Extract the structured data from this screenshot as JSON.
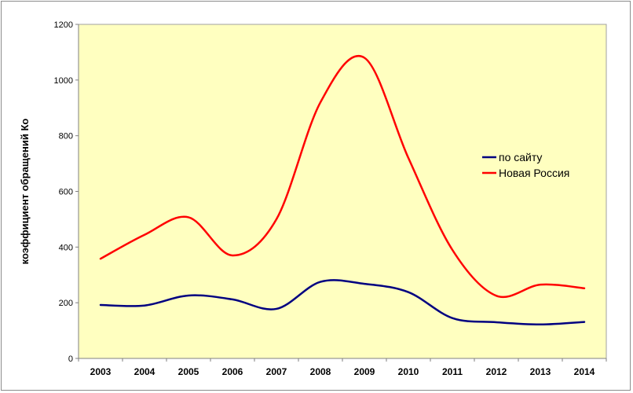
{
  "chart_data": {
    "type": "line",
    "title": "",
    "xlabel": "",
    "ylabel": "коэффициент обращений Ко",
    "categories": [
      "2003",
      "2004",
      "2005",
      "2006",
      "2007",
      "2008",
      "2009",
      "2010",
      "2011",
      "2012",
      "2013",
      "2014"
    ],
    "ylim": [
      0,
      1200
    ],
    "yticks": [
      0,
      200,
      400,
      600,
      800,
      1000,
      1200
    ],
    "grid": false,
    "legend_position": "right",
    "plot_background": "#FFFFC0",
    "series": [
      {
        "name": "по сайту",
        "color": "#000080",
        "values": [
          192,
          190,
          226,
          212,
          178,
          275,
          268,
          238,
          145,
          130,
          122,
          131
        ]
      },
      {
        "name": "Новая Россия",
        "color": "#FF0000",
        "values": [
          358,
          444,
          507,
          370,
          500,
          920,
          1080,
          720,
          390,
          225,
          265,
          252
        ]
      }
    ]
  }
}
